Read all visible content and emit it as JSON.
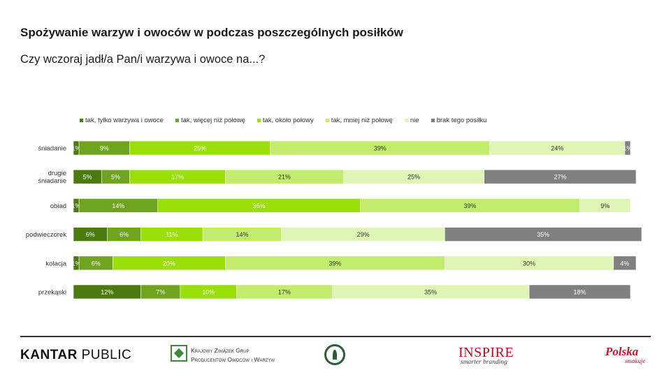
{
  "header": {
    "title": "Spożywanie warzyw i owoców w podczas poszczególnych posiłków",
    "subtitle": "Czy wczoraj jadł/a Pan/i warzywa i owoce na...?"
  },
  "chart_data": {
    "type": "bar",
    "orientation": "horizontal",
    "stacked": true,
    "percent": true,
    "xlim": [
      0,
      100
    ],
    "legend_position": "top",
    "categories": [
      "śniadanie",
      "drugie śniadanie",
      "obiad",
      "podwieczorek",
      "kolacja",
      "przekąski"
    ],
    "category_lines": [
      [
        "śniadanie"
      ],
      [
        "drugie",
        "śniadanie"
      ],
      [
        "obiad"
      ],
      [
        "podwieczorek"
      ],
      [
        "kolacja"
      ],
      [
        "przekąski"
      ]
    ],
    "series": [
      {
        "name": "tak, tylko warzywa i owoce",
        "color": "#4b7a0f",
        "label_color": "#ffffff",
        "values": [
          1,
          5,
          1,
          6,
          1,
          12
        ]
      },
      {
        "name": "tak, więcej niż połowę",
        "color": "#6fa51e",
        "label_color": "#ffffff",
        "values": [
          9,
          5,
          14,
          6,
          6,
          7
        ]
      },
      {
        "name": "tak, około połowy",
        "color": "#9adf08",
        "label_color": "#ffffff",
        "values": [
          25,
          17,
          36,
          11,
          20,
          10
        ]
      },
      {
        "name": "tak, mniej niż połowę",
        "color": "#c3ec6c",
        "label_color": "#333333",
        "values": [
          39,
          21,
          39,
          14,
          39,
          17
        ]
      },
      {
        "name": "nie",
        "color": "#dff5b5",
        "label_color": "#333333",
        "values": [
          24,
          25,
          9,
          29,
          30,
          35
        ]
      },
      {
        "name": "brak tego posiłku",
        "color": "#808080",
        "label_color": "#ffffff",
        "values": [
          1,
          27,
          0,
          35,
          4,
          18
        ]
      }
    ]
  },
  "footer": {
    "kantar_bold": "KANTAR",
    "kantar_rest": " PUBLIC",
    "kzg_line1": "Krajowy Związek Grup",
    "kzg_line2": "Producentów Owoców i Warzyw",
    "inspire": "INSPIRE",
    "inspire_sub": "smarter branding",
    "polska": "Polska",
    "smakuje": "smakuje"
  }
}
